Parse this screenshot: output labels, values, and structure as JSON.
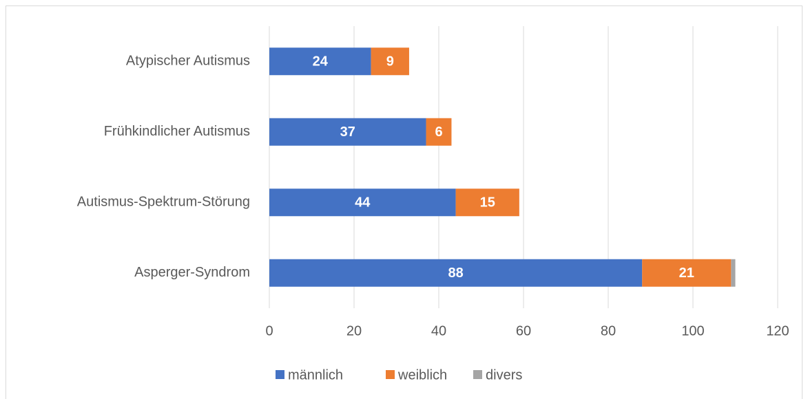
{
  "chart_data": {
    "type": "bar",
    "orientation": "horizontal",
    "stacked": true,
    "categories": [
      "Atypischer Autismus",
      "Frühkindlicher Autismus",
      "Autismus-Spektrum-Störung",
      "Asperger-Syndrom"
    ],
    "series": [
      {
        "name": "männlich",
        "color": "#4472c4",
        "values": [
          24,
          37,
          44,
          88
        ],
        "data_labels": true
      },
      {
        "name": "weiblich",
        "color": "#ed7d31",
        "values": [
          9,
          6,
          15,
          21
        ],
        "data_labels": true
      },
      {
        "name": "divers",
        "color": "#a5a5a5",
        "values": [
          0,
          0,
          0,
          1
        ],
        "data_labels": false
      }
    ],
    "xlim": [
      0,
      120
    ],
    "xticks": [
      0,
      20,
      40,
      60,
      80,
      100,
      120
    ],
    "grid": true,
    "legend": "bottom"
  }
}
